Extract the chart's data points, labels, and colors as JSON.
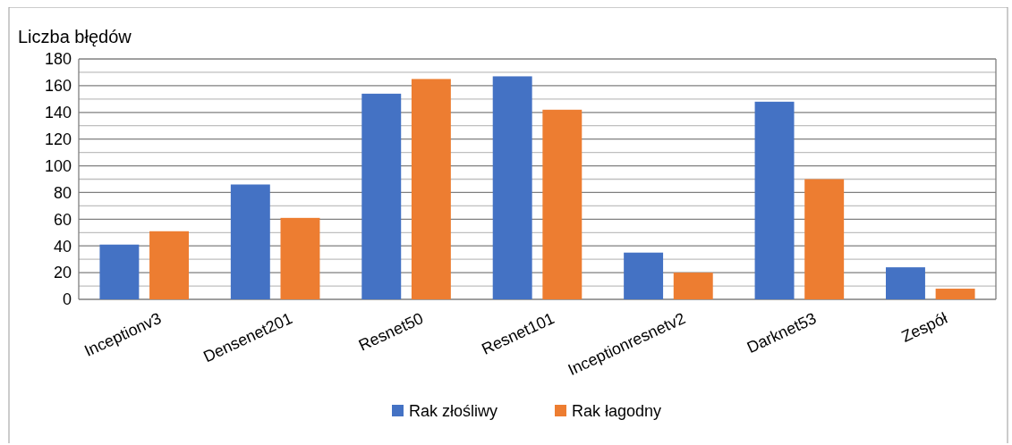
{
  "chart_data": {
    "type": "bar",
    "ylabel": "Liczba błędów",
    "categories": [
      "Inceptionv3",
      "Densenet201",
      "Resnet50",
      "Resnet101",
      "Inceptionresnetv2",
      "Darknet53",
      "Zespół"
    ],
    "series": [
      {
        "name": "Rak złośliwy",
        "color": "#4472c4",
        "values": [
          41,
          86,
          154,
          167,
          35,
          148,
          24
        ]
      },
      {
        "name": "Rak łagodny",
        "color": "#ed7d31",
        "values": [
          51,
          61,
          165,
          142,
          20,
          90,
          8
        ]
      }
    ],
    "ylim": [
      0,
      180
    ],
    "yticks": [
      0,
      {
        "value": 10,
        "label": null
      },
      20,
      {
        "value": 30,
        "label": null
      },
      40,
      {
        "value": 50,
        "label": null
      },
      60,
      {
        "value": 70,
        "label": null
      },
      80,
      {
        "value": 90,
        "label": null
      },
      100,
      {
        "value": 110,
        "label": null
      },
      120,
      {
        "value": 130,
        "label": null
      },
      140,
      {
        "value": 150,
        "label": null
      },
      160,
      {
        "value": 170,
        "label": null
      },
      180
    ],
    "grid": true,
    "legend": "bottom"
  }
}
